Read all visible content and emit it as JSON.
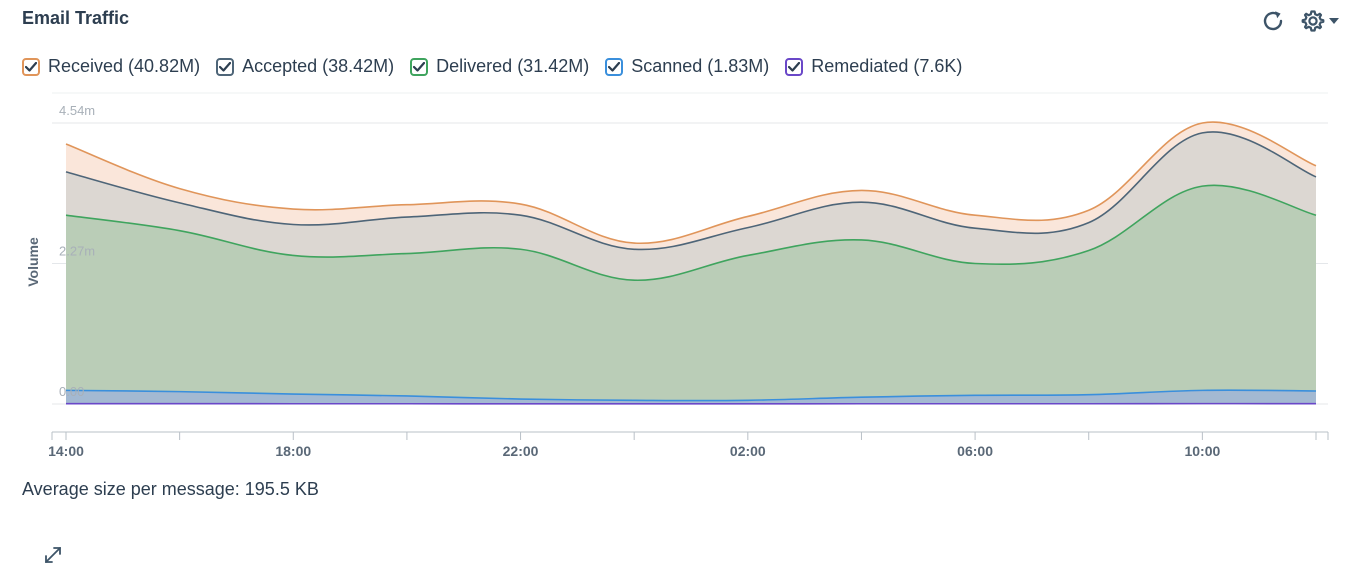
{
  "header": {
    "title": "Email Traffic",
    "refresh_icon": "refresh-icon",
    "settings_icon": "gear-icon"
  },
  "legend": [
    {
      "label": "Received (40.82M)",
      "color": "#e0955a"
    },
    {
      "label": "Accepted (38.42M)",
      "color": "#4e6578"
    },
    {
      "label": "Delivered (31.42M)",
      "color": "#3fa45e"
    },
    {
      "label": "Scanned (1.83M)",
      "color": "#3a8fdc"
    },
    {
      "label": "Remediated (7.6K)",
      "color": "#6a48c8"
    }
  ],
  "chart_data": {
    "type": "area",
    "ylabel": "Volume",
    "y_tick_labels": [
      "0.00",
      "2.27m",
      "4.54m"
    ],
    "y_tick_values": [
      0,
      2.27,
      4.54
    ],
    "ylim": [
      0,
      4.54
    ],
    "x_tick_labels": [
      "14:00",
      "18:00",
      "22:00",
      "02:00",
      "06:00",
      "10:00"
    ],
    "x": [
      "14:00",
      "16:00",
      "18:00",
      "20:00",
      "22:00",
      "00:00",
      "02:00",
      "04:00",
      "06:00",
      "08:00",
      "10:00",
      "12:00"
    ],
    "series": [
      {
        "name": "Received",
        "color": "#e0955a",
        "fill": "#fae6da",
        "values": [
          4.2,
          3.48,
          3.15,
          3.22,
          3.23,
          2.6,
          3.03,
          3.45,
          3.05,
          3.13,
          4.54,
          3.85
        ]
      },
      {
        "name": "Accepted",
        "color": "#4e6578",
        "fill": "#dcd7d2",
        "values": [
          3.75,
          3.25,
          2.9,
          3.02,
          3.05,
          2.5,
          2.85,
          3.26,
          2.84,
          2.93,
          4.38,
          3.67
        ]
      },
      {
        "name": "Delivered",
        "color": "#3fa45e",
        "fill": "#bacdb7",
        "values": [
          3.05,
          2.8,
          2.4,
          2.43,
          2.5,
          2.0,
          2.4,
          2.65,
          2.27,
          2.48,
          3.52,
          3.05
        ]
      },
      {
        "name": "Scanned",
        "color": "#3a8fdc",
        "fill": "#a3b9d2",
        "values": [
          0.22,
          0.2,
          0.16,
          0.13,
          0.08,
          0.06,
          0.06,
          0.11,
          0.14,
          0.15,
          0.22,
          0.21
        ]
      },
      {
        "name": "Remediated",
        "color": "#6a48c8",
        "fill": "#8f86cf",
        "values": [
          0.005,
          0.005,
          0.004,
          0.004,
          0.003,
          0.003,
          0.003,
          0.004,
          0.004,
          0.004,
          0.006,
          0.005
        ]
      }
    ]
  },
  "footer": {
    "avg_size": "Average size per message: 195.5 KB",
    "expand_icon": "expand-icon"
  }
}
